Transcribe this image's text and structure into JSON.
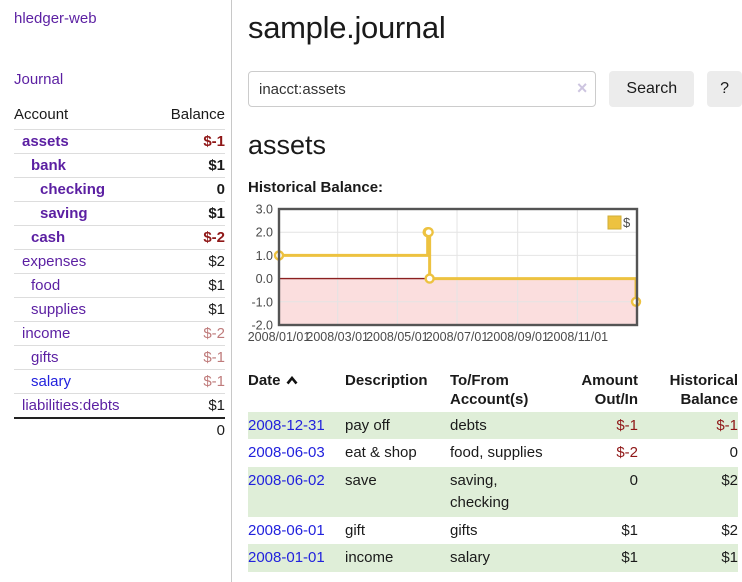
{
  "app": {
    "title": "hledger-web",
    "journal_nav": "Journal"
  },
  "sidebar": {
    "accounts": {
      "header_account": "Account",
      "header_balance": "Balance",
      "rows": [
        {
          "name": "assets",
          "depth": 0,
          "matched": true,
          "balance": "$-1",
          "negative": "strong",
          "link": "purple"
        },
        {
          "name": "bank",
          "depth": 1,
          "matched": true,
          "balance": "$1",
          "negative": null,
          "link": "purple"
        },
        {
          "name": "checking",
          "depth": 2,
          "matched": true,
          "balance": "0",
          "negative": null,
          "link": "purple"
        },
        {
          "name": "saving",
          "depth": 2,
          "matched": true,
          "balance": "$1",
          "negative": null,
          "link": "purple"
        },
        {
          "name": "cash",
          "depth": 1,
          "matched": true,
          "balance": "$-2",
          "negative": "strong",
          "link": "purple"
        },
        {
          "name": "expenses",
          "depth": 0,
          "matched": false,
          "balance": "$2",
          "negative": null,
          "link": "purple"
        },
        {
          "name": "food",
          "depth": 1,
          "matched": false,
          "balance": "$1",
          "negative": null,
          "link": "purple"
        },
        {
          "name": "supplies",
          "depth": 1,
          "matched": false,
          "balance": "$1",
          "negative": null,
          "link": "purple"
        },
        {
          "name": "income",
          "depth": 0,
          "matched": false,
          "balance": "$-2",
          "negative": "soft",
          "link": "purple"
        },
        {
          "name": "gifts",
          "depth": 1,
          "matched": false,
          "balance": "$-1",
          "negative": "soft",
          "link": "purple"
        },
        {
          "name": "salary",
          "depth": 1,
          "matched": false,
          "balance": "$-1",
          "negative": "soft",
          "link": "blue"
        },
        {
          "name": "liabilities:debts",
          "depth": 0,
          "matched": false,
          "balance": "$1",
          "negative": null,
          "link": "purple"
        }
      ],
      "total": "0"
    }
  },
  "main": {
    "title": "sample.journal",
    "search": {
      "value": "inacct:assets",
      "clear_icon": "×",
      "button": "Search",
      "help": "?"
    },
    "account_heading": "assets",
    "chart_title": "Historical Balance:",
    "register": {
      "headers": {
        "date": "Date",
        "description": "Description",
        "accounts_line1": "To/From",
        "accounts_line2": "Account(s)",
        "amount_line1": "Amount",
        "amount_line2": "Out/In",
        "balance_line1": "Historical",
        "balance_line2": "Balance"
      },
      "rows": [
        {
          "date": "2008-12-31",
          "description": "pay off",
          "accounts": "debts",
          "amount": "$-1",
          "amount_negative": true,
          "balance": "$-1",
          "balance_negative": true,
          "shaded": true
        },
        {
          "date": "2008-06-03",
          "description": "eat & shop",
          "accounts": "food, supplies",
          "amount": "$-2",
          "amount_negative": true,
          "balance": "0",
          "balance_negative": false,
          "shaded": false
        },
        {
          "date": "2008-06-02",
          "description": "save",
          "accounts": "saving, checking",
          "amount": "0",
          "amount_negative": false,
          "balance": "$2",
          "balance_negative": false,
          "shaded": true
        },
        {
          "date": "2008-06-01",
          "description": "gift",
          "accounts": "gifts",
          "amount": "$1",
          "amount_negative": false,
          "balance": "$2",
          "balance_negative": false,
          "shaded": false
        },
        {
          "date": "2008-01-01",
          "description": "income",
          "accounts": "salary",
          "amount": "$1",
          "amount_negative": false,
          "balance": "$1",
          "balance_negative": false,
          "shaded": true
        }
      ]
    }
  },
  "chart_data": {
    "type": "line",
    "step": true,
    "title": "Historical Balance:",
    "legend": [
      {
        "label": "$",
        "color": "#edc240"
      }
    ],
    "series": [
      {
        "name": "$",
        "color": "#edc240",
        "points": [
          [
            "2008-01-01",
            1
          ],
          [
            "2008-06-01",
            2
          ],
          [
            "2008-06-02",
            2
          ],
          [
            "2008-06-03",
            0
          ],
          [
            "2008-12-31",
            -1
          ]
        ]
      }
    ],
    "xlim": [
      "2008-01-01",
      "2009-01-01"
    ],
    "ylim": [
      -2,
      3
    ],
    "y_ticks": [
      "3.0",
      "2.0",
      "1.0",
      "0.0",
      "-1.0",
      "-2.0"
    ],
    "x_ticks": [
      {
        "date": "2008-01-01",
        "label": "2008/01/01"
      },
      {
        "date": "2008-03-01",
        "label": "2008/03/01"
      },
      {
        "date": "2008-05-01",
        "label": "2008/05/01"
      },
      {
        "date": "2008-07-01",
        "label": "2008/07/01"
      },
      {
        "date": "2008-09-01",
        "label": "2008/09/01"
      },
      {
        "date": "2008-11-01",
        "label": "2008/11/01"
      }
    ],
    "x_gridlines": [
      "2008-03-01",
      "2008-05-01",
      "2008-07-01",
      "2008-09-01",
      "2008-11-01",
      "2009-01-01"
    ],
    "grid_on": true,
    "legend_position": "top-right",
    "zero_line_color": "#8b2020",
    "negative_region_color": "#fbdede",
    "grid_color": "#e4e4e4",
    "border_color": "#545454"
  },
  "colors": {
    "link_purple": "#5b1fa2",
    "link_blue": "#2222dd",
    "negative_strong": "#8f1717",
    "negative_soft": "#bf7b7b",
    "row_shade_green": "#dfeed8",
    "accent_yellow": "#edc240"
  }
}
